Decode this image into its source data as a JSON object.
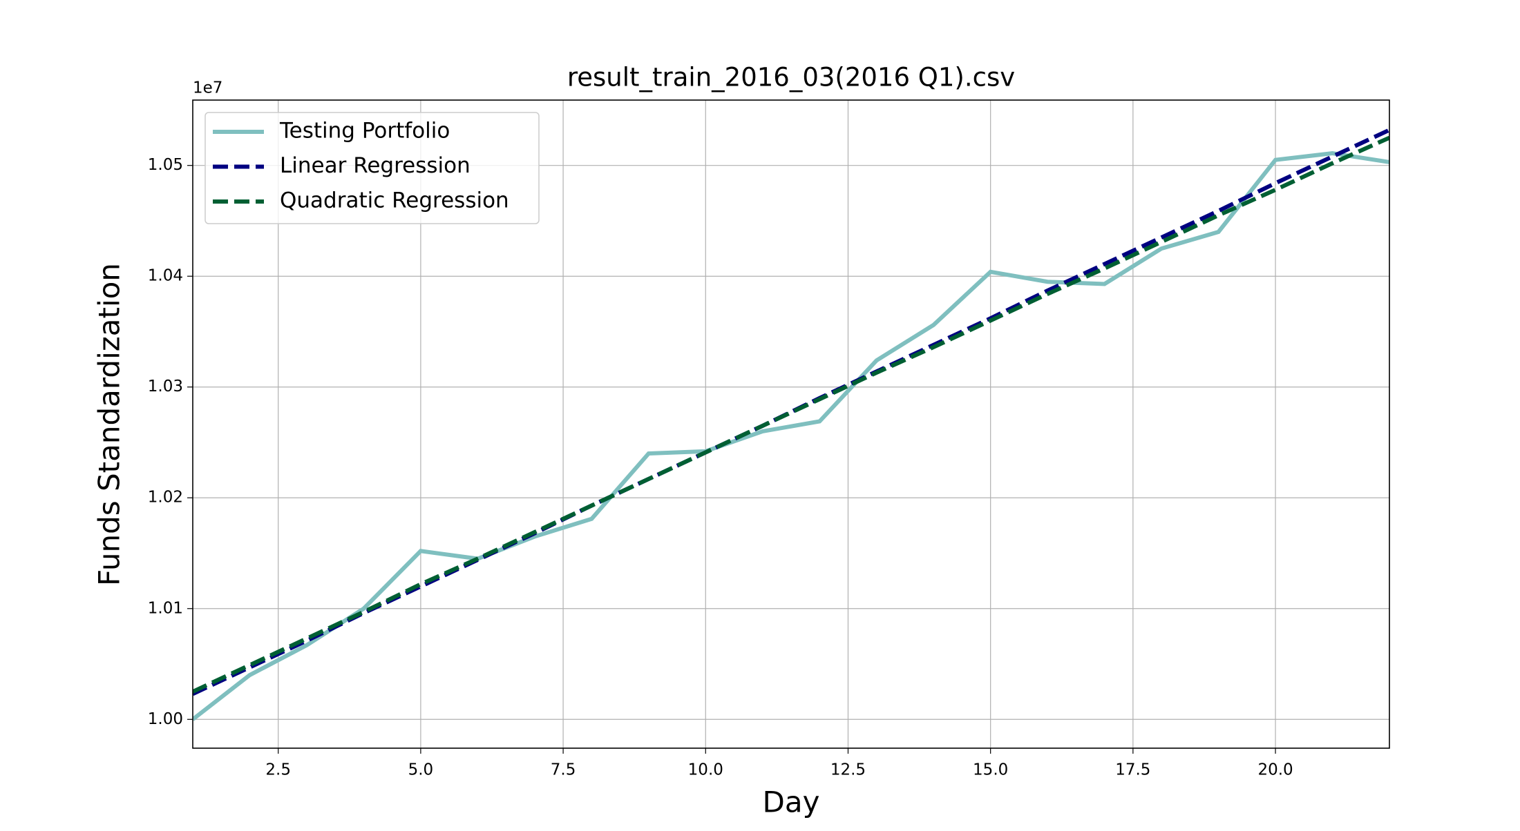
{
  "chart_data": {
    "type": "line",
    "title": "result_train_2016_03(2016 Q1).csv",
    "x_label": "Day",
    "y_label": "Funds Standardization",
    "y_offset_label": "1e7",
    "x": [
      1,
      2,
      3,
      4,
      5,
      6,
      7,
      8,
      9,
      10,
      11,
      12,
      13,
      14,
      15,
      16,
      17,
      18,
      19,
      20,
      21,
      22
    ],
    "series": [
      {
        "name": "Testing Portfolio",
        "color": "#7fbfbf",
        "linestyle": "solid",
        "values": [
          1.0,
          1.004,
          1.0067,
          1.01,
          1.0152,
          1.0145,
          1.0165,
          1.0181,
          1.024,
          1.0242,
          1.026,
          1.0269,
          1.0324,
          1.0356,
          1.0404,
          1.0395,
          1.0393,
          1.0425,
          1.044,
          1.0505,
          1.0511,
          1.0503
        ]
      },
      {
        "name": "Linear Regression",
        "color": "#000080",
        "linestyle": "dashed",
        "values": [
          1.0023,
          1.0047,
          1.0071,
          1.0096,
          1.012,
          1.0144,
          1.0168,
          1.0193,
          1.0217,
          1.0241,
          1.0265,
          1.029,
          1.0314,
          1.0338,
          1.0362,
          1.0387,
          1.0411,
          1.0435,
          1.0459,
          1.0484,
          1.0508,
          1.0532
        ]
      },
      {
        "name": "Quadratic Regression",
        "color": "#005f33",
        "linestyle": "dashed",
        "values": [
          1.0025,
          1.0049,
          1.0073,
          1.0097,
          1.0122,
          1.0145,
          1.0169,
          1.0193,
          1.0217,
          1.0241,
          1.0265,
          1.0289,
          1.0313,
          1.0336,
          1.036,
          1.0384,
          1.0407,
          1.0431,
          1.0455,
          1.0478,
          1.0502,
          1.0525
        ]
      }
    ],
    "xlim": [
      1,
      22
    ],
    "ylim": [
      0.9974,
      1.0559
    ],
    "xticks": [
      2.5,
      {
        "value": 5,
        "label": "5.0"
      },
      7.5,
      {
        "value": 10,
        "label": "10.0"
      },
      12.5,
      {
        "value": 15,
        "label": "15.0"
      },
      17.5,
      {
        "value": 20,
        "label": "20.0"
      }
    ],
    "yticks": [
      {
        "value": 1,
        "label": "1.00"
      },
      {
        "value": 1.01,
        "label": "1.01"
      },
      {
        "value": 1.02,
        "label": "1.02"
      },
      {
        "value": 1.03,
        "label": "1.03"
      },
      {
        "value": 1.04,
        "label": "1.04"
      },
      {
        "value": 1.05,
        "label": "1.05"
      }
    ],
    "grid": true,
    "legend": "upper-left"
  }
}
